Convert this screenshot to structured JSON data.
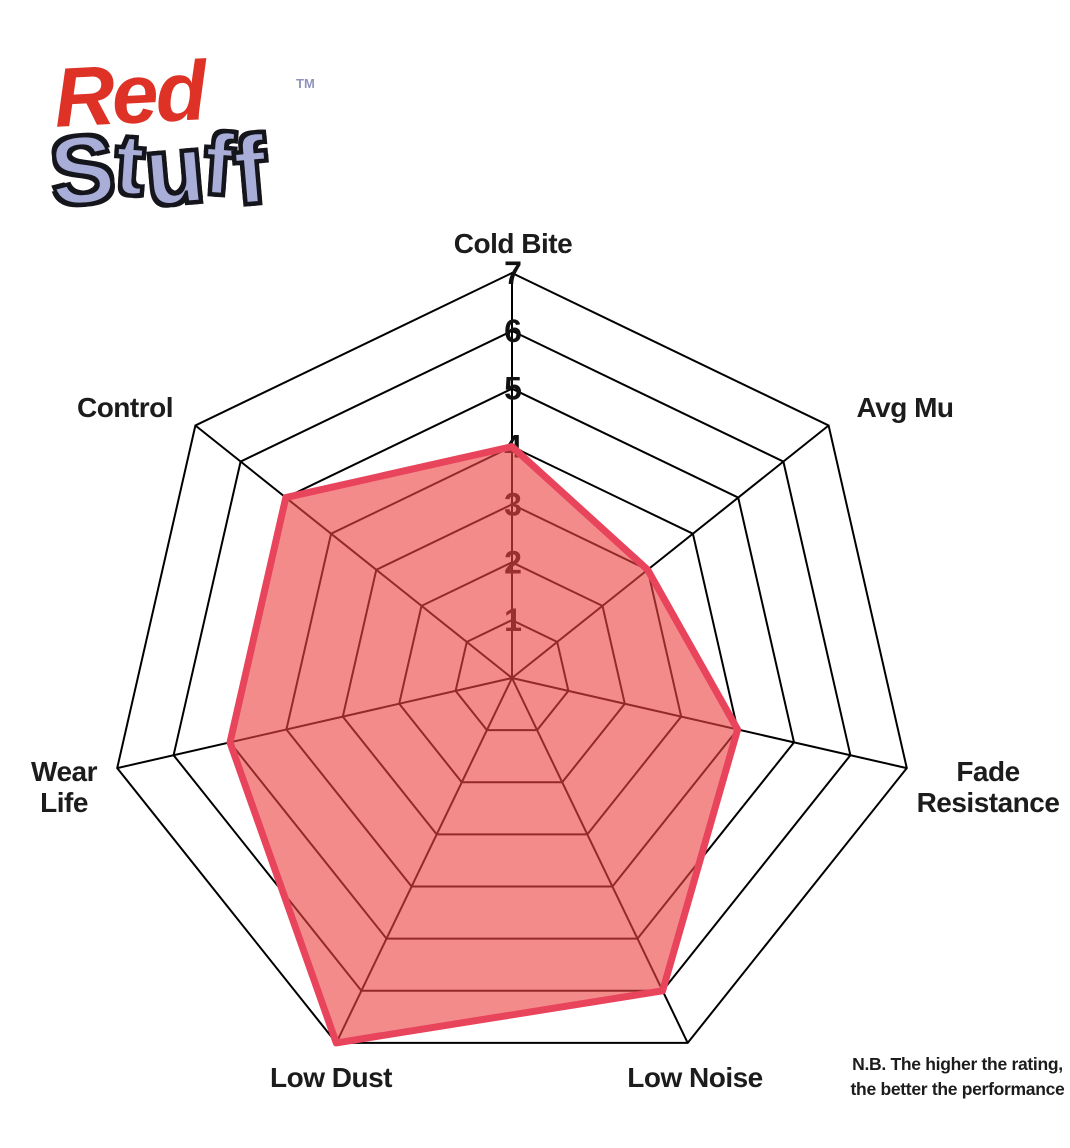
{
  "logo": {
    "brand_red": "Red",
    "brand_stuff": "Stuff",
    "trademark": "TM"
  },
  "chart_data": {
    "type": "radar",
    "categories": [
      "Cold Bite",
      "Avg Mu",
      "Fade Resistance",
      "Low Noise",
      "Low Dust",
      "Wear Life",
      "Control"
    ],
    "series": [
      {
        "name": "RedStuff",
        "values": [
          4,
          3,
          4,
          6,
          7,
          5,
          5
        ]
      }
    ],
    "scale": {
      "min": 0,
      "max": 7,
      "tick_labels": [
        "1",
        "2",
        "3",
        "4",
        "5",
        "6",
        "7"
      ],
      "tick_axis": "Cold Bite"
    },
    "grid": "concentric-heptagon-rings",
    "legend": "none",
    "axis_count": 7
  },
  "note": {
    "line1": "N.B. The higher the rating,",
    "line2": "the better the performance"
  },
  "colors": {
    "series_fill": "#ee4444",
    "series_fill_opacity": "0.62",
    "series_stroke": "#e8445c",
    "grid_line": "#000000",
    "tick_text": "#111111",
    "label_text": "#1c1c1c",
    "logo_red": "#de3226",
    "logo_periwinkle": "#a9aed9"
  }
}
